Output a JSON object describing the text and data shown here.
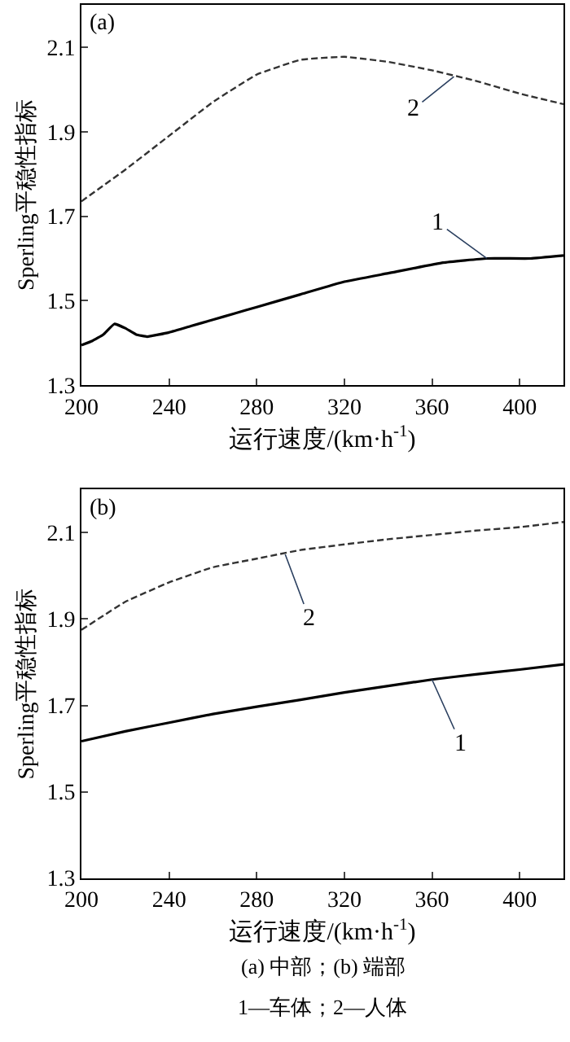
{
  "chart_data": [
    {
      "type": "line",
      "title": "(a)",
      "xlabel": "运行速度/(km·h$^{-1}$)",
      "ylabel": "Sperling平稳性指标",
      "xlim": [
        200,
        420
      ],
      "xticks": [
        200,
        240,
        280,
        320,
        360,
        400
      ],
      "ylim": [
        1.3,
        2.2
      ],
      "yticks": [
        1.3,
        1.5,
        1.7,
        1.9,
        2.1
      ],
      "series": [
        {
          "color": "#000000",
          "line_style": "solid",
          "x": [
            200,
            205,
            210,
            215,
            220,
            225,
            230,
            240,
            250,
            260,
            270,
            280,
            300,
            320,
            340,
            365,
            385,
            405,
            420
          ],
          "values": [
            1.395,
            1.405,
            1.42,
            1.445,
            1.435,
            1.42,
            1.415,
            1.425,
            1.44,
            1.455,
            1.47,
            1.485,
            1.515,
            1.545,
            1.565,
            1.59,
            1.6,
            1.6,
            1.607
          ]
        },
        {
          "color": "#333333",
          "line_style": "dashed",
          "x": [
            200,
            220,
            240,
            260,
            280,
            300,
            320,
            340,
            360,
            380,
            400,
            420
          ],
          "values": [
            1.735,
            1.81,
            1.89,
            1.97,
            2.035,
            2.07,
            2.077,
            2.065,
            2.045,
            2.02,
            1.99,
            1.965
          ]
        }
      ],
      "annotations": [
        {
          "text": "1",
          "x": 385,
          "y": 1.6
        },
        {
          "text": "2",
          "x": 370,
          "y": 2.03
        }
      ]
    },
    {
      "type": "line",
      "title": "(b)",
      "xlabel": "运行速度/(km·h$^{-1}$)",
      "ylabel": "Sperling平稳性指标",
      "xlim": [
        200,
        420
      ],
      "xticks": [
        200,
        240,
        280,
        320,
        360,
        400
      ],
      "ylim": [
        1.3,
        2.2
      ],
      "yticks": [
        1.3,
        1.5,
        1.7,
        1.9,
        2.1
      ],
      "series": [
        {
          "color": "#000000",
          "line_style": "solid",
          "x": [
            200,
            220,
            240,
            260,
            280,
            300,
            320,
            340,
            360,
            380,
            400,
            420
          ],
          "values": [
            1.617,
            1.64,
            1.66,
            1.68,
            1.697,
            1.713,
            1.73,
            1.745,
            1.76,
            1.772,
            1.783,
            1.795
          ]
        },
        {
          "color": "#333333",
          "line_style": "dashed",
          "x": [
            200,
            220,
            240,
            260,
            280,
            300,
            320,
            340,
            360,
            380,
            400,
            420
          ],
          "values": [
            1.875,
            1.94,
            1.985,
            2.02,
            2.04,
            2.06,
            2.073,
            2.085,
            2.095,
            2.105,
            2.113,
            2.125
          ]
        }
      ],
      "annotations": [
        {
          "text": "1",
          "x": 360,
          "y": 1.76
        },
        {
          "text": "2",
          "x": 293,
          "y": 2.05
        },
        "(a) 中部；(b) 端部",
        "1—车体；2—人体"
      ]
    }
  ]
}
